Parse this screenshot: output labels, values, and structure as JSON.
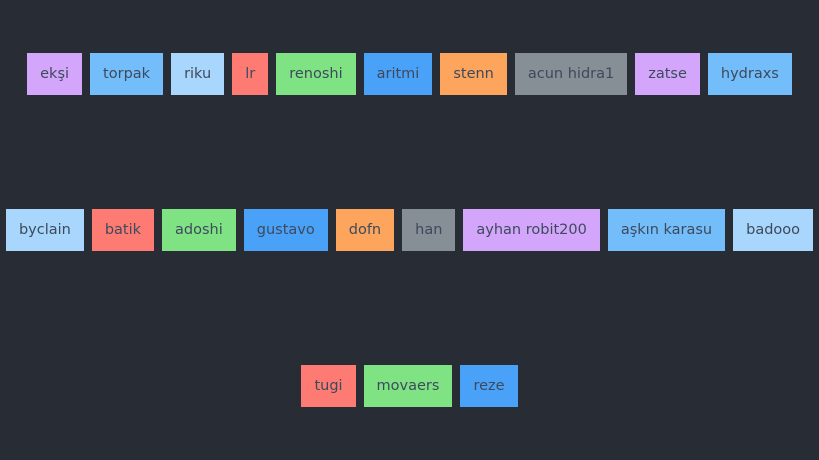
{
  "colors": {
    "background": "#282c34",
    "purple": "#d3a6fb",
    "blue": "#74bdfb",
    "light_blue": "#a8d6fd",
    "red": "#fd7b72",
    "green": "#7fe383",
    "dark_blue": "#4aa1f8",
    "orange": "#fda55c",
    "gray": "#868e96"
  },
  "rows": [
    [
      "ekşi",
      "torpak",
      "riku",
      "lr",
      "renoshi",
      "aritmi",
      "stenn",
      "acun hidra1",
      "zatse",
      "hydraxs"
    ],
    [
      "byclain",
      "batik",
      "adoshi",
      "gustavo",
      "dofn",
      "han",
      "ayhan robit200",
      "aşkın karasu",
      "badooo"
    ],
    [
      "tugi",
      "movaers",
      "reze"
    ]
  ]
}
